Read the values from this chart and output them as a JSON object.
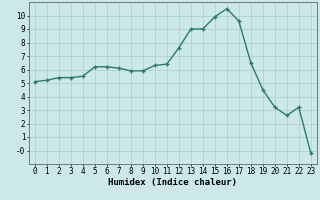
{
  "x": [
    0,
    1,
    2,
    3,
    4,
    5,
    6,
    7,
    8,
    9,
    10,
    11,
    12,
    13,
    14,
    15,
    16,
    17,
    18,
    19,
    20,
    21,
    22,
    23
  ],
  "y": [
    5.1,
    5.2,
    5.4,
    5.4,
    5.5,
    6.2,
    6.2,
    6.1,
    5.9,
    5.9,
    6.3,
    6.4,
    7.6,
    9.0,
    9.0,
    9.9,
    10.5,
    9.6,
    6.5,
    4.5,
    3.2,
    2.6,
    3.2,
    -0.2
  ],
  "xlabel": "Humidex (Indice chaleur)",
  "xlim": [
    -0.5,
    23.5
  ],
  "ylim": [
    -1.0,
    11.0
  ],
  "yticks": [
    0,
    1,
    2,
    3,
    4,
    5,
    6,
    7,
    8,
    9,
    10
  ],
  "ytick_labels": [
    "-0",
    "1",
    "2",
    "3",
    "4",
    "5",
    "6",
    "7",
    "8",
    "9",
    "10"
  ],
  "xticks": [
    0,
    1,
    2,
    3,
    4,
    5,
    6,
    7,
    8,
    9,
    10,
    11,
    12,
    13,
    14,
    15,
    16,
    17,
    18,
    19,
    20,
    21,
    22,
    23
  ],
  "line_color": "#2a7d6a",
  "marker": "+",
  "marker_size": 3.5,
  "marker_edge_width": 1.0,
  "bg_color": "#cce8e8",
  "grid_color": "#aacece",
  "xlabel_fontsize": 6.5,
  "tick_fontsize": 5.5,
  "line_width": 1.0
}
